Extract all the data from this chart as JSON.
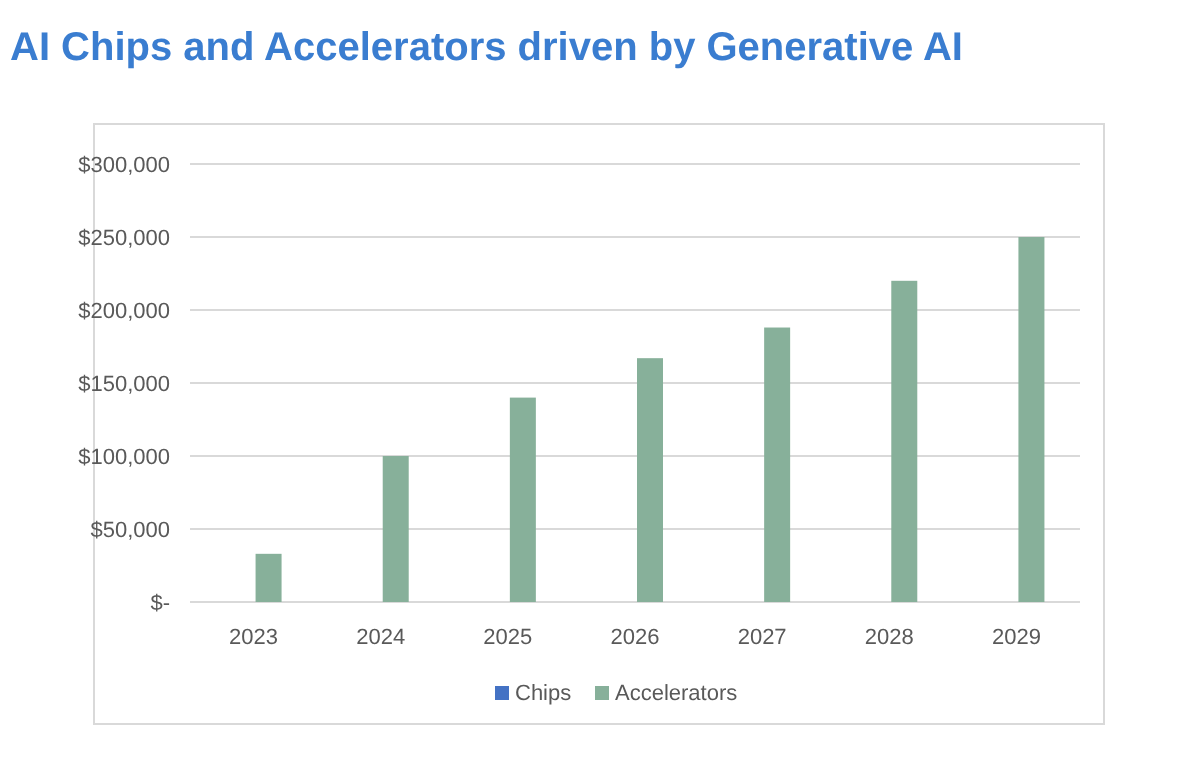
{
  "chart_data": {
    "type": "bar",
    "title": "AI Chips and Accelerators driven by Generative AI",
    "categories": [
      "2023",
      "2024",
      "2025",
      "2026",
      "2027",
      "2028",
      "2029"
    ],
    "series": [
      {
        "name": "Chips",
        "color": "#4472c4",
        "values": [
          0,
          0,
          0,
          0,
          0,
          0,
          0
        ]
      },
      {
        "name": "Accelerators",
        "color": "#87b09a",
        "values": [
          33000,
          100000,
          140000,
          167000,
          188000,
          220000,
          250000
        ]
      }
    ],
    "ylim": [
      0,
      300000
    ],
    "yticks": [
      {
        "value": 0,
        "label": "$-"
      },
      {
        "value": 50000,
        "label": "$50,000"
      },
      {
        "value": 100000,
        "label": "$100,000"
      },
      {
        "value": 150000,
        "label": "$150,000"
      },
      {
        "value": 200000,
        "label": "$200,000"
      },
      {
        "value": 250000,
        "label": "$250,000"
      },
      {
        "value": 300000,
        "label": "$300,000"
      }
    ],
    "grid": "y",
    "legend": "bottom"
  }
}
